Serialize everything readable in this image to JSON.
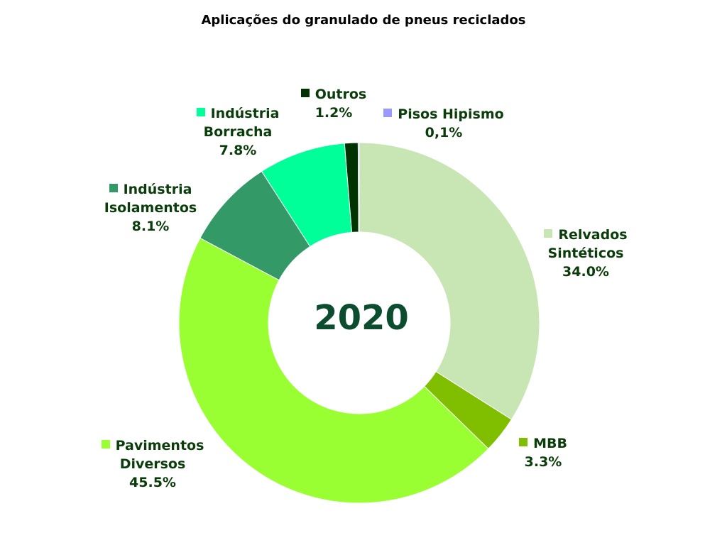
{
  "chart_data": {
    "type": "pie",
    "title": "Aplicações do granulado de pneus reciclados",
    "center_label": "2020",
    "categories": [
      "Relvados Sintéticos",
      "MBB",
      "Pavimentos Diversos",
      "Indústria Isolamentos",
      "Indústria Borracha",
      "Outros",
      "Pisos Hipismo"
    ],
    "values": [
      34.0,
      3.3,
      45.5,
      8.1,
      7.8,
      1.2,
      0.1
    ],
    "value_labels": [
      "34.0%",
      "3.3%",
      "45.5%",
      "8.1%",
      "7.8%",
      "1.2%",
      "0,1%"
    ],
    "label_lines": [
      [
        "Relvados",
        "Sintéticos"
      ],
      [
        "MBB"
      ],
      [
        "Pavimentos",
        "Diversos"
      ],
      [
        "Indústria",
        "Isolamentos"
      ],
      [
        "Indústria",
        "Borracha"
      ],
      [
        "Outros"
      ],
      [
        "Pisos Hipismo"
      ]
    ],
    "colors": [
      "#c8e6b4",
      "#7fbf00",
      "#99ff33",
      "#339966",
      "#00ff99",
      "#003300",
      "#9999ff"
    ],
    "legend": "labels next to slices",
    "donut": true
  }
}
